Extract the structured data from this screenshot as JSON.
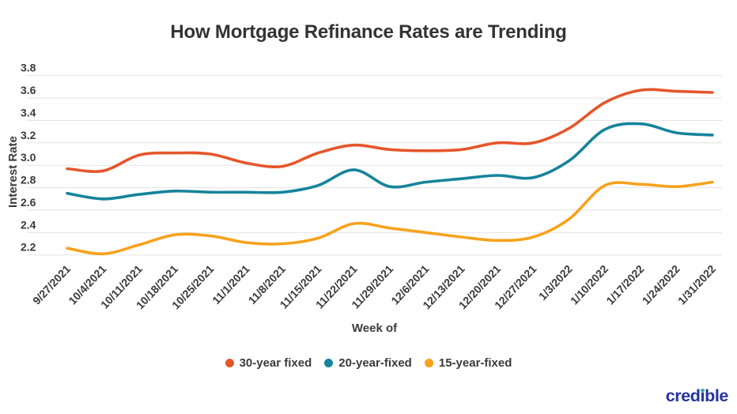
{
  "page": {
    "background": "#ffffff"
  },
  "chart_data": {
    "type": "line",
    "title": "How Mortgage Refinance Rates are Trending",
    "xlabel": "Week of",
    "ylabel": "Interest Rate",
    "ylim": [
      2.2,
      3.8
    ],
    "yticks": [
      3.8,
      3.6,
      3.4,
      3.2,
      3.0,
      2.8,
      2.6,
      2.4,
      2.2
    ],
    "grid": true,
    "legend_position": "bottom",
    "categories": [
      "9/27/2021",
      "10/4/2021",
      "10/11/2021",
      "10/18/2021",
      "10/25/2021",
      "11/1/2021",
      "11/8/2021",
      "11/15/2021",
      "11/22/2021",
      "11/29/2021",
      "12/6/2021",
      "12/13/2021",
      "12/20/2021",
      "12/27/2021",
      "1/3/2022",
      "1/10/2022",
      "1/17/2022",
      "1/24/2022",
      "1/31/2022"
    ],
    "series": [
      {
        "name": "30-year fixed",
        "color": "#e5562c",
        "values": [
          2.97,
          2.95,
          3.09,
          3.11,
          3.1,
          3.02,
          2.99,
          3.11,
          3.18,
          3.14,
          3.13,
          3.14,
          3.2,
          3.2,
          3.33,
          3.56,
          3.67,
          3.66,
          3.65
        ]
      },
      {
        "name": "20-year-fixed",
        "color": "#16849b",
        "values": [
          2.75,
          2.7,
          2.74,
          2.77,
          2.76,
          2.76,
          2.76,
          2.82,
          2.96,
          2.81,
          2.85,
          2.88,
          2.91,
          2.89,
          3.04,
          3.32,
          3.37,
          3.29,
          3.27
        ]
      },
      {
        "name": "15-year-fixed",
        "color": "#f7a21c",
        "values": [
          2.26,
          2.21,
          2.29,
          2.38,
          2.37,
          2.31,
          2.3,
          2.35,
          2.48,
          2.44,
          2.4,
          2.36,
          2.33,
          2.36,
          2.52,
          2.82,
          2.83,
          2.81,
          2.85
        ]
      }
    ]
  },
  "branding": {
    "logo": {
      "part1": "cred",
      "dotless_i": "ı",
      "part2": "ble",
      "color": "#24349d",
      "dot_color": "#35b39e"
    }
  },
  "colors": {
    "grid": "#e3e3e3",
    "text_dark": "#3b3b3b",
    "title": "#333333"
  }
}
